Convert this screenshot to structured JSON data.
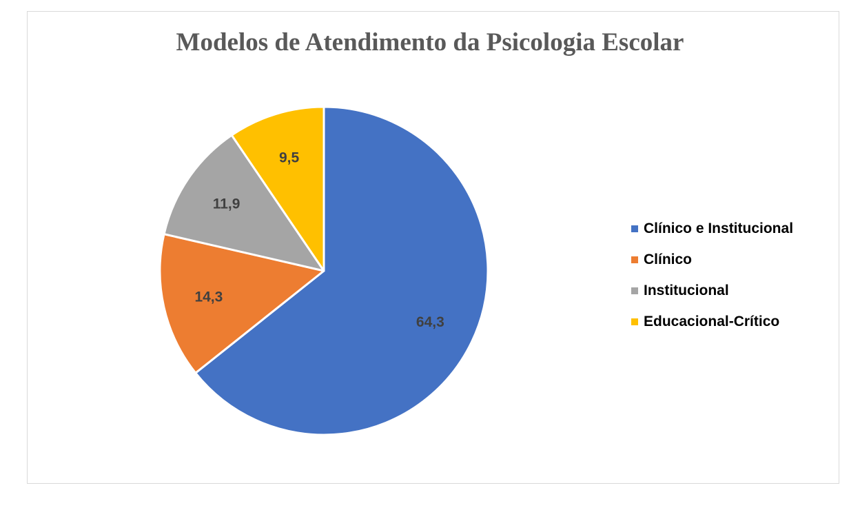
{
  "chart_data": {
    "type": "pie",
    "title": "Modelos de Atendimento da Psicologia Escolar",
    "categories": [
      "Clínico e Institucional",
      "Clínico",
      "Institucional",
      "Educacional-Crítico"
    ],
    "values": [
      64.3,
      14.3,
      11.9,
      9.5
    ],
    "value_labels": [
      "64,3",
      "14,3",
      "11,9",
      "9,5"
    ],
    "colors": [
      "#4472C4",
      "#ED7D31",
      "#A5A5A5",
      "#FFC000"
    ],
    "start_angle": "12 o'clock",
    "direction": "clockwise",
    "legend_position": "right"
  }
}
